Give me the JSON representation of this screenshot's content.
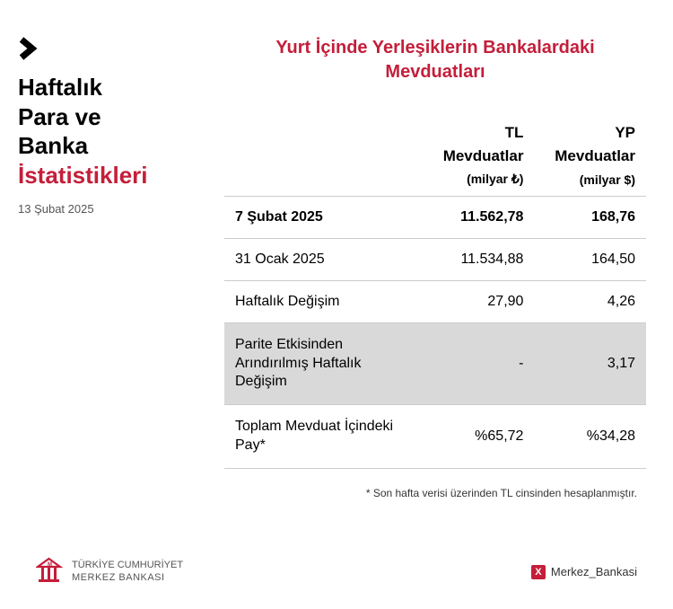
{
  "colors": {
    "accent": "#c41e3a",
    "text": "#000000",
    "muted": "#555555",
    "divider": "#cccccc",
    "shaded_row": "#d9d9d9",
    "background": "#ffffff"
  },
  "left": {
    "title_lines": [
      "Haftalık",
      "Para ve",
      "Banka"
    ],
    "title_red": "İstatistikleri",
    "date": "13 Şubat 2025"
  },
  "main_title": "Yurt İçinde Yerleşiklerin Bankalardaki Mevduatları",
  "table": {
    "columns": [
      {
        "head1": "TL",
        "head2": "Mevduatlar",
        "unit": "(milyar ₺)"
      },
      {
        "head1": "YP",
        "head2": "Mevduatlar",
        "unit": "(milyar $)"
      }
    ],
    "rows": [
      {
        "label": "7 Şubat 2025",
        "c1": "11.562,78",
        "c2": "168,76",
        "bold": true,
        "shaded": false
      },
      {
        "label": "31 Ocak 2025",
        "c1": "11.534,88",
        "c2": "164,50",
        "bold": false,
        "shaded": false
      },
      {
        "label": "Haftalık Değişim",
        "c1": "27,90",
        "c2": "4,26",
        "bold": false,
        "shaded": false
      },
      {
        "label": "Parite Etkisinden Arındırılmış Haftalık Değişim",
        "c1": "-",
        "c2": "3,17",
        "bold": false,
        "shaded": true,
        "multiline": true
      },
      {
        "label": "Toplam Mevduat İçindeki Pay*",
        "c1": "%65,72",
        "c2": "%34,28",
        "bold": false,
        "shaded": false,
        "multiline": true
      }
    ]
  },
  "footnote": "* Son hafta verisi üzerinden TL cinsinden hesaplanmıştır.",
  "footer": {
    "org_line1": "TÜRKİYE CUMHURİYET",
    "org_line2": "MERKEZ BANKASI",
    "social_handle": "Merkez_Bankasi"
  }
}
